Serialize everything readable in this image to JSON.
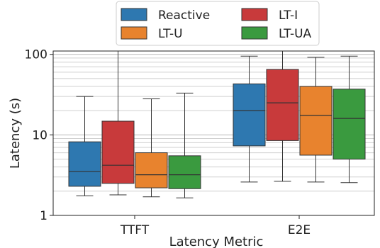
{
  "chart_data": {
    "type": "box",
    "xlabel": "Latency Metric",
    "ylabel": "Latency (s)",
    "yscale": "log",
    "ylim": [
      1,
      110
    ],
    "yticks": [
      1,
      10,
      100
    ],
    "ytick_labels": [
      "1",
      "10",
      "100"
    ],
    "grid": "horizontal, major and minor",
    "legend_position": "top-center, above plot",
    "categories": [
      "TTFT",
      "E2E"
    ],
    "series": [
      {
        "name": "Reactive",
        "color": "#2e78b0",
        "boxes": [
          {
            "whisker_low": 1.75,
            "q1": 2.3,
            "median": 3.5,
            "q3": 8.2,
            "whisker_high": 30
          },
          {
            "whisker_low": 2.6,
            "q1": 7.3,
            "median": 20,
            "q3": 43,
            "whisker_high": 95
          }
        ]
      },
      {
        "name": "LT-I",
        "color": "#c83a3b",
        "boxes": [
          {
            "whisker_low": 1.8,
            "q1": 2.5,
            "median": 4.2,
            "q3": 14.8,
            "whisker_high": 110
          },
          {
            "whisker_low": 2.65,
            "q1": 8.5,
            "median": 25,
            "q3": 65,
            "whisker_high": 110
          }
        ]
      },
      {
        "name": "LT-U",
        "color": "#e8832e",
        "boxes": [
          {
            "whisker_low": 1.7,
            "q1": 2.2,
            "median": 3.2,
            "q3": 6.0,
            "whisker_high": 28
          },
          {
            "whisker_low": 2.6,
            "q1": 5.6,
            "median": 17.5,
            "q3": 40,
            "whisker_high": 92
          }
        ]
      },
      {
        "name": "LT-UA",
        "color": "#3a9a3f",
        "boxes": [
          {
            "whisker_low": 1.65,
            "q1": 2.15,
            "median": 3.2,
            "q3": 5.5,
            "whisker_high": 33
          },
          {
            "whisker_low": 2.55,
            "q1": 5.0,
            "median": 16,
            "q3": 37,
            "whisker_high": 95
          }
        ]
      }
    ]
  }
}
